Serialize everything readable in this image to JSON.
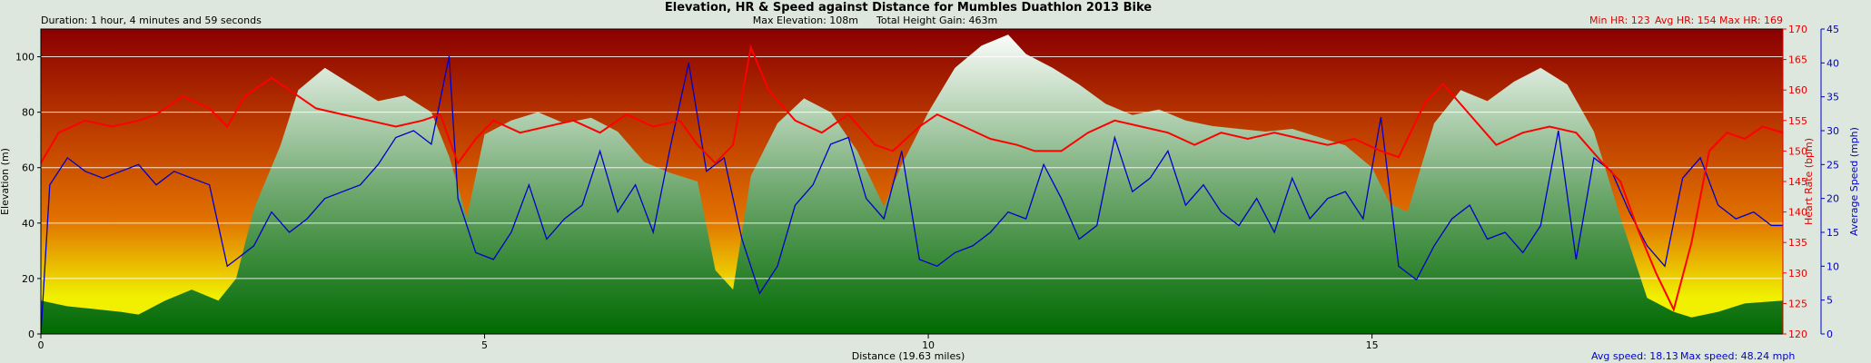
{
  "header": {
    "title": "Elevation, HR & Speed against Distance for Mumbles Duathlon 2013 Bike",
    "duration": "Duration: 1 hour, 4 minutes and 59 seconds",
    "max_elevation": "Max Elevation: 108m",
    "total_height_gain": "Total Height Gain: 463m",
    "min_hr": "Min HR: 123",
    "avg_hr": "Avg HR: 154",
    "max_hr": "Max HR: 169"
  },
  "footer": {
    "avg_speed": "Avg speed: 18.13",
    "max_speed": "Max speed: 48.24 mph"
  },
  "colors": {
    "hr_line": "#ff0000",
    "speed_line": "#0000cc",
    "bg_top": "#8a0000",
    "bg_mid": "#e07000",
    "bg_low": "#f0f000",
    "elev_top": "#ffffff",
    "elev_bottom": "#006a00"
  },
  "chart_data": {
    "type": "line",
    "title": "Elevation, HR & Speed against Distance for Mumbles Duathlon 2013 Bike",
    "xlabel": "Distance (19.63 miles)",
    "xlim": [
      0,
      19.63
    ],
    "x_ticks": [
      "0",
      "5",
      "10",
      "15"
    ],
    "x_tick_values": [
      0,
      5,
      10,
      15
    ],
    "axes": {
      "elevation": {
        "label": "Elevation (m)",
        "range": [
          0,
          110
        ],
        "ticks": [
          0,
          20,
          40,
          60,
          80,
          100
        ]
      },
      "heart_rate": {
        "label": "Heart Rate (bpm)",
        "range": [
          120,
          170
        ],
        "ticks": [
          120,
          125,
          130,
          135,
          140,
          145,
          150,
          155,
          160,
          165,
          170
        ]
      },
      "speed": {
        "label": "Average Speed (mph)",
        "range": [
          0,
          45
        ],
        "ticks": [
          0,
          5,
          10,
          15,
          20,
          25,
          30,
          35,
          40,
          45
        ]
      }
    },
    "grid": "horizontal",
    "series": [
      {
        "name": "Elevation",
        "axis": "elevation",
        "x": [
          0,
          0.3,
          0.6,
          0.9,
          1.1,
          1.4,
          1.7,
          2.0,
          2.2,
          2.4,
          2.7,
          2.9,
          3.2,
          3.5,
          3.8,
          4.1,
          4.4,
          4.6,
          4.8,
          5.0,
          5.3,
          5.6,
          5.9,
          6.2,
          6.5,
          6.8,
          7.1,
          7.4,
          7.6,
          7.8,
          8.0,
          8.3,
          8.6,
          8.9,
          9.2,
          9.5,
          9.7,
          10.0,
          10.3,
          10.6,
          10.9,
          11.1,
          11.4,
          11.7,
          12.0,
          12.3,
          12.6,
          12.9,
          13.2,
          13.5,
          13.8,
          14.1,
          14.4,
          14.7,
          15.0,
          15.2,
          15.4,
          15.7,
          16.0,
          16.3,
          16.6,
          16.9,
          17.2,
          17.5,
          17.8,
          18.1,
          18.4,
          18.6,
          18.9,
          19.2,
          19.63
        ],
        "y": [
          12,
          10,
          9,
          8,
          7,
          12,
          16,
          12,
          20,
          45,
          68,
          88,
          96,
          90,
          84,
          86,
          80,
          64,
          42,
          72,
          77,
          80,
          76,
          78,
          73,
          62,
          58,
          55,
          23,
          16,
          57,
          76,
          85,
          80,
          66,
          46,
          61,
          80,
          96,
          104,
          108,
          101,
          96,
          90,
          83,
          79,
          81,
          77,
          75,
          74,
          73,
          74,
          71,
          68,
          60,
          47,
          44,
          76,
          88,
          84,
          91,
          96,
          90,
          73,
          42,
          13,
          8,
          6,
          8,
          11,
          12
        ]
      },
      {
        "name": "Heart Rate",
        "axis": "heart_rate",
        "x": [
          0,
          0.2,
          0.5,
          0.8,
          1.1,
          1.3,
          1.6,
          1.9,
          2.1,
          2.3,
          2.6,
          2.8,
          3.1,
          3.4,
          3.7,
          4.0,
          4.3,
          4.5,
          4.7,
          4.9,
          5.1,
          5.4,
          5.7,
          6.0,
          6.3,
          6.6,
          6.9,
          7.2,
          7.4,
          7.6,
          7.8,
          8.0,
          8.2,
          8.5,
          8.8,
          9.1,
          9.4,
          9.6,
          9.9,
          10.1,
          10.4,
          10.7,
          11.0,
          11.2,
          11.5,
          11.8,
          12.1,
          12.4,
          12.7,
          13.0,
          13.3,
          13.6,
          13.9,
          14.2,
          14.5,
          14.8,
          15.1,
          15.3,
          15.6,
          15.8,
          16.1,
          16.4,
          16.7,
          17.0,
          17.3,
          17.6,
          17.8,
          18.0,
          18.2,
          18.4,
          18.6,
          18.8,
          19.0,
          19.2,
          19.4,
          19.63
        ],
        "y": [
          148,
          153,
          155,
          154,
          155,
          156,
          159,
          157,
          154,
          159,
          162,
          160,
          157,
          156,
          155,
          154,
          155,
          156,
          148,
          152,
          155,
          153,
          154,
          155,
          153,
          156,
          154,
          155,
          151,
          148,
          151,
          167,
          160,
          155,
          153,
          156,
          151,
          150,
          154,
          156,
          154,
          152,
          151,
          150,
          150,
          153,
          155,
          154,
          153,
          151,
          153,
          152,
          153,
          152,
          151,
          152,
          150,
          149,
          158,
          161,
          156,
          151,
          153,
          154,
          153,
          148,
          145,
          137,
          130,
          124,
          135,
          150,
          153,
          152,
          154,
          153
        ]
      },
      {
        "name": "Average Speed",
        "axis": "speed",
        "x": [
          0,
          0.1,
          0.3,
          0.5,
          0.7,
          0.9,
          1.1,
          1.3,
          1.5,
          1.7,
          1.9,
          2.1,
          2.2,
          2.4,
          2.6,
          2.8,
          3.0,
          3.2,
          3.4,
          3.6,
          3.8,
          4.0,
          4.2,
          4.4,
          4.6,
          4.7,
          4.9,
          5.1,
          5.3,
          5.5,
          5.7,
          5.9,
          6.1,
          6.3,
          6.5,
          6.7,
          6.9,
          7.1,
          7.3,
          7.5,
          7.7,
          7.9,
          8.1,
          8.3,
          8.5,
          8.7,
          8.9,
          9.1,
          9.3,
          9.5,
          9.7,
          9.9,
          10.1,
          10.3,
          10.5,
          10.7,
          10.9,
          11.1,
          11.3,
          11.5,
          11.7,
          11.9,
          12.1,
          12.3,
          12.5,
          12.7,
          12.9,
          13.1,
          13.3,
          13.5,
          13.7,
          13.9,
          14.1,
          14.3,
          14.5,
          14.7,
          14.9,
          15.1,
          15.3,
          15.5,
          15.7,
          15.9,
          16.1,
          16.3,
          16.5,
          16.7,
          16.9,
          17.1,
          17.3,
          17.5,
          17.7,
          17.9,
          18.1,
          18.3,
          18.5,
          18.7,
          18.9,
          19.1,
          19.3,
          19.5,
          19.63
        ],
        "y": [
          0,
          22,
          26,
          24,
          23,
          24,
          25,
          22,
          24,
          23,
          22,
          10,
          11,
          13,
          18,
          15,
          17,
          20,
          21,
          22,
          25,
          29,
          30,
          28,
          41,
          20,
          12,
          11,
          15,
          22,
          14,
          17,
          19,
          27,
          18,
          22,
          15,
          28,
          40,
          24,
          26,
          14,
          6,
          10,
          19,
          22,
          28,
          29,
          20,
          17,
          27,
          11,
          10,
          12,
          13,
          15,
          18,
          17,
          25,
          20,
          14,
          16,
          29,
          21,
          23,
          27,
          19,
          22,
          18,
          16,
          20,
          15,
          23,
          17,
          20,
          21,
          17,
          32,
          10,
          8,
          13,
          17,
          19,
          14,
          15,
          12,
          16,
          30,
          11,
          26,
          24,
          18,
          13,
          10,
          23,
          26,
          19,
          17,
          18,
          16,
          16
        ]
      }
    ]
  }
}
